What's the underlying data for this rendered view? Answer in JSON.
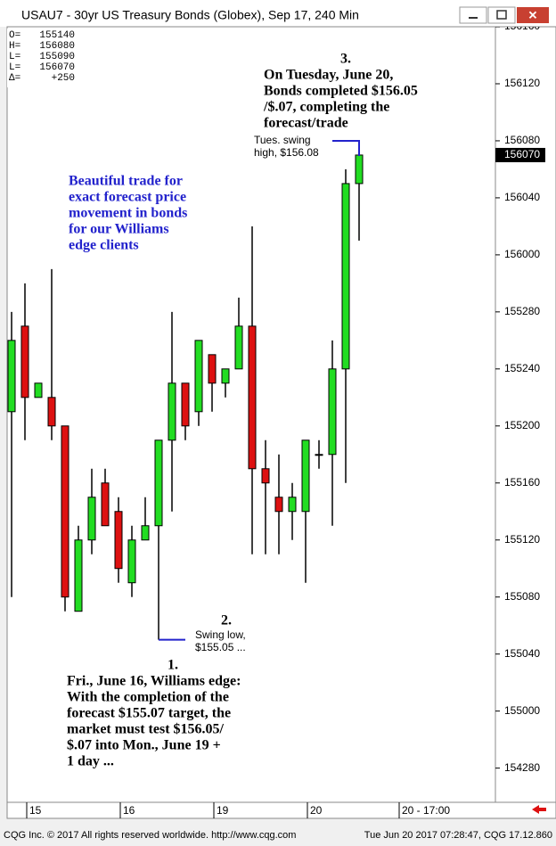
{
  "window_title": "USAU7 - 30yr US Treasury Bonds (Globex), Sep 17, 240 Min",
  "info": [
    {
      "label": "O=",
      "value": "155140"
    },
    {
      "label": "H=",
      "value": "156080"
    },
    {
      "label": "L=",
      "value": "155090"
    },
    {
      "label": "L=",
      "value": "156070"
    },
    {
      "label": "Δ=",
      "value": "+250"
    }
  ],
  "chart_data": {
    "type": "candlestick",
    "categories": [
      null,
      "15",
      null,
      null,
      null,
      null,
      null,
      null,
      "16",
      null,
      null,
      null,
      null,
      null,
      null,
      "19",
      null,
      null,
      null,
      null,
      null,
      null,
      "20",
      null,
      null,
      null,
      null
    ],
    "open": [
      155.65625,
      155.84375,
      155.6875,
      155.6875,
      155.625,
      155.21875,
      155.375,
      155.5,
      155.4375,
      155.28125,
      155.375,
      155.40625,
      155.59375,
      155.71875,
      155.65625,
      155.78125,
      155.71875,
      155.75,
      155.84375,
      155.53125,
      155.46875,
      155.4375,
      155.4375,
      155.5625,
      155.5625,
      155.75,
      156.15625
    ],
    "high": [
      155.875,
      155.9375,
      155.71875,
      155.96875,
      155.625,
      155.40625,
      155.53125,
      155.53125,
      155.46875,
      155.40625,
      155.46875,
      155.59375,
      155.875,
      155.71875,
      155.8125,
      155.78125,
      155.75,
      155.90625,
      156.0625,
      155.59375,
      155.5625,
      155.5,
      155.59375,
      155.59375,
      155.8125,
      156.1875,
      156.25
    ],
    "low": [
      155.25,
      155.59375,
      155.6875,
      155.59375,
      155.21875,
      155.21875,
      155.34375,
      155.40625,
      155.28125,
      155.25,
      155.375,
      155.15625,
      155.4375,
      155.59375,
      155.625,
      155.65625,
      155.6875,
      155.75,
      155.34375,
      155.34375,
      155.34375,
      155.375,
      155.28125,
      155.53125,
      155.40625,
      155.5,
      156.03125
    ],
    "close": [
      155.8125,
      155.6875,
      155.71875,
      155.625,
      155.25,
      155.375,
      155.46875,
      155.40625,
      155.3125,
      155.375,
      155.40625,
      155.59375,
      155.71875,
      155.625,
      155.8125,
      155.71875,
      155.75,
      155.84375,
      155.53125,
      155.5,
      155.4375,
      155.46875,
      155.59375,
      155.5625,
      155.75,
      156.15625,
      156.21875
    ],
    "up_color": "#22dd22",
    "down_color": "#dd1111",
    "ylim": [
      154.8,
      156.5
    ],
    "yticks": [
      {
        "value": 156.5,
        "label": "156160"
      },
      {
        "value": 156.375,
        "label": "156120"
      },
      {
        "value": 156.25,
        "label": "156080"
      },
      {
        "value": 156.125,
        "label": "156040"
      },
      {
        "value": 156,
        "label": "156000"
      },
      {
        "value": 155.875,
        "label": "155280"
      },
      {
        "value": 155.75,
        "label": "155240"
      },
      {
        "value": 155.625,
        "label": "155200"
      },
      {
        "value": 155.5,
        "label": "155160"
      },
      {
        "value": 155.375,
        "label": "155120"
      },
      {
        "value": 155.25,
        "label": "155080"
      },
      {
        "value": 155.125,
        "label": "155040"
      },
      {
        "value": 155,
        "label": "155000"
      },
      {
        "value": 154.875,
        "label": "154280"
      }
    ],
    "last_price": {
      "value": 156.21875,
      "label": "156070"
    },
    "cursor_time_label": "20 - 17:00",
    "annotations": [
      {
        "number": "3.",
        "lines": [
          "On Tuesday, June 20,",
          "Bonds completed $156.05",
          "/$.07, completing the",
          "forecast/trade"
        ]
      },
      {
        "lines": [
          "Tues. swing",
          "high, $156.08"
        ]
      },
      {
        "lines": [
          "Beautiful trade for",
          "exact forecast price",
          "movement in bonds",
          "for our Williams",
          "edge clients"
        ]
      },
      {
        "number": "2.",
        "lines": [
          "Swing low,",
          "$155.05 ..."
        ]
      },
      {
        "number": "1.",
        "lines": [
          "Fri., June 16, Williams edge:",
          "With the completion of the",
          "forecast $155.07 target, the",
          "market must test $156.05/",
          "$.07 into Mon., June 19 +",
          "1 day ..."
        ]
      }
    ]
  },
  "footer": {
    "left": "CQG Inc. © 2017 All rights reserved worldwide. http://www.cqg.com",
    "right": "Tue Jun 20 2017 07:28:47, CQG 17.12.860"
  }
}
